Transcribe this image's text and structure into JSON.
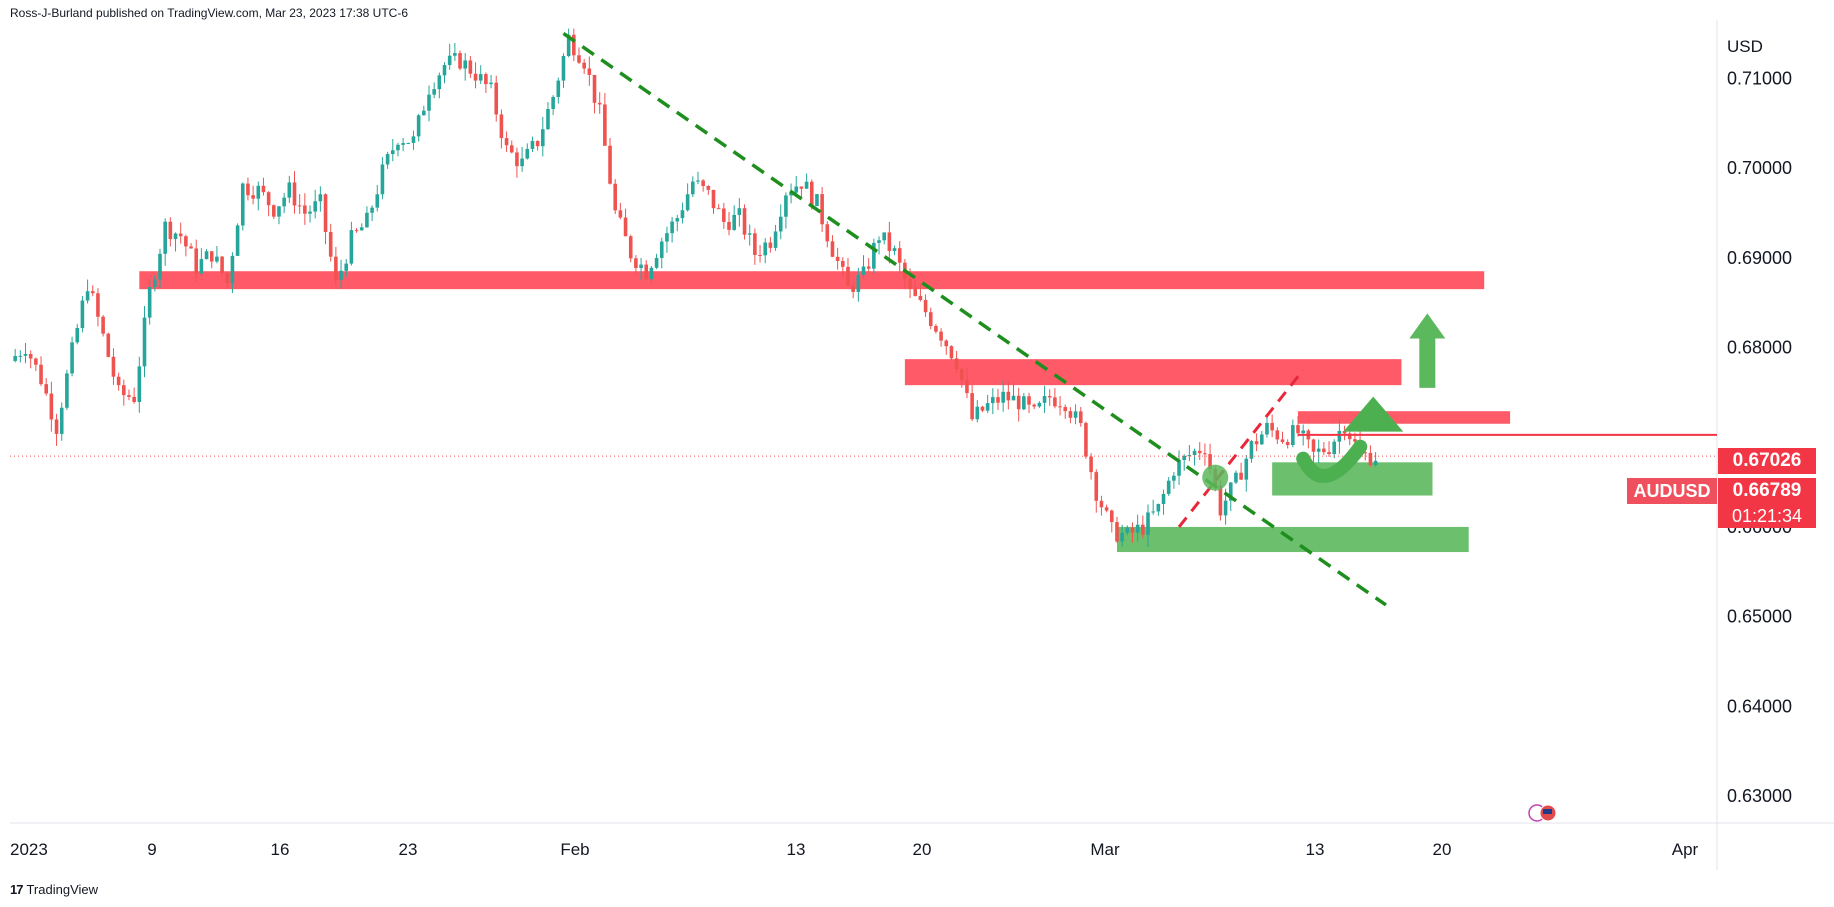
{
  "header": {
    "publisher_text": "Ross-J-Burland published on TradingView.com, Mar 23, 2023 17:38 UTC-6"
  },
  "footer": {
    "brand": "TradingView",
    "logo_glyph": "17"
  },
  "colors": {
    "up": "#26a69a",
    "down": "#ef5350",
    "resistance_zone": "#ff5a68",
    "support_zone": "#5cb85c",
    "trendline": "#1e8e1e",
    "price_tag": "#f23645",
    "dotted": "#ef5350"
  },
  "price_tags": {
    "last_price": "0.67026",
    "current_price": "0.66789",
    "countdown": "01:21:34",
    "symbol": "AUDUSD"
  },
  "chart_data": {
    "type": "candlestick",
    "symbol": "AUDUSD",
    "currency_label": "USD",
    "y_ticks": [
      "0.71000",
      "0.70000",
      "0.69000",
      "0.68000",
      "0.66000",
      "0.65000",
      "0.64000",
      "0.63000"
    ],
    "x_ticks": [
      "2023",
      "9",
      "16",
      "23",
      "Feb",
      "13",
      "20",
      "Mar",
      "13",
      "20",
      "Apr"
    ],
    "ylim": [
      0.627,
      0.7165
    ],
    "price_path": [
      [
        0,
        0.6785
      ],
      [
        3,
        0.6802
      ],
      [
        6,
        0.6765
      ],
      [
        9,
        0.6712
      ],
      [
        12,
        0.6795
      ],
      [
        15,
        0.6872
      ],
      [
        18,
        0.6812
      ],
      [
        21,
        0.6748
      ],
      [
        24,
        0.6745
      ],
      [
        27,
        0.6862
      ],
      [
        30,
        0.6935
      ],
      [
        33,
        0.6925
      ],
      [
        36,
        0.689
      ],
      [
        39,
        0.6905
      ],
      [
        42,
        0.6872
      ],
      [
        45,
        0.698
      ],
      [
        48,
        0.6975
      ],
      [
        51,
        0.6955
      ],
      [
        54,
        0.6975
      ],
      [
        57,
        0.695
      ],
      [
        60,
        0.696
      ],
      [
        63,
        0.687
      ],
      [
        66,
        0.692
      ],
      [
        69,
        0.694
      ],
      [
        72,
        0.6995
      ],
      [
        75,
        0.7035
      ],
      [
        78,
        0.703
      ],
      [
        81,
        0.709
      ],
      [
        84,
        0.7115
      ],
      [
        87,
        0.712
      ],
      [
        90,
        0.7105
      ],
      [
        93,
        0.7085
      ],
      [
        96,
        0.702
      ],
      [
        99,
        0.7005
      ],
      [
        102,
        0.703
      ],
      [
        105,
        0.708
      ],
      [
        108,
        0.7145
      ],
      [
        111,
        0.712
      ],
      [
        114,
        0.706
      ],
      [
        117,
        0.695
      ],
      [
        120,
        0.6905
      ],
      [
        123,
        0.6885
      ],
      [
        126,
        0.692
      ],
      [
        129,
        0.6945
      ],
      [
        132,
        0.6985
      ],
      [
        135,
        0.697
      ],
      [
        138,
        0.694
      ],
      [
        141,
        0.6945
      ],
      [
        144,
        0.6905
      ],
      [
        147,
        0.692
      ],
      [
        150,
        0.6975
      ],
      [
        153,
        0.6985
      ],
      [
        156,
        0.696
      ],
      [
        159,
        0.691
      ],
      [
        162,
        0.6865
      ],
      [
        165,
        0.688
      ],
      [
        168,
        0.6925
      ],
      [
        171,
        0.6905
      ],
      [
        174,
        0.686
      ],
      [
        177,
        0.684
      ],
      [
        180,
        0.6815
      ],
      [
        183,
        0.6785
      ],
      [
        186,
        0.672
      ],
      [
        189,
        0.6735
      ],
      [
        192,
        0.6745
      ],
      [
        195,
        0.674
      ],
      [
        198,
        0.6725
      ],
      [
        201,
        0.6745
      ],
      [
        204,
        0.674
      ],
      [
        207,
        0.671
      ],
      [
        210,
        0.664
      ],
      [
        213,
        0.6595
      ],
      [
        216,
        0.659
      ],
      [
        219,
        0.66
      ],
      [
        222,
        0.662
      ],
      [
        225,
        0.6665
      ],
      [
        228,
        0.668
      ],
      [
        231,
        0.669
      ],
      [
        234,
        0.662
      ],
      [
        237,
        0.665
      ],
      [
        240,
        0.669
      ],
      [
        243,
        0.671
      ],
      [
        246,
        0.67
      ],
      [
        249,
        0.6705
      ],
      [
        252,
        0.668
      ],
      [
        255,
        0.669
      ],
      [
        258,
        0.6715
      ],
      [
        261,
        0.668
      ],
      [
        264,
        0.6679
      ]
    ],
    "resistance_zones": [
      {
        "x_start": 25,
        "x_end": 285,
        "y_low": 0.6865,
        "y_high": 0.6885
      },
      {
        "x_start": 173,
        "x_end": 269,
        "y_low": 0.6758,
        "y_high": 0.6787
      },
      {
        "x_start": 249,
        "x_end": 290,
        "y_low": 0.6715,
        "y_high": 0.6729
      }
    ],
    "support_zones": [
      {
        "x_start": 244,
        "x_end": 275,
        "y_low": 0.6635,
        "y_high": 0.6672
      },
      {
        "x_start": 214,
        "x_end": 282,
        "y_low": 0.6572,
        "y_high": 0.66
      }
    ],
    "trendline": {
      "x1": 107,
      "y1": 0.715,
      "x2": 266,
      "y2": 0.6513
    }
  }
}
